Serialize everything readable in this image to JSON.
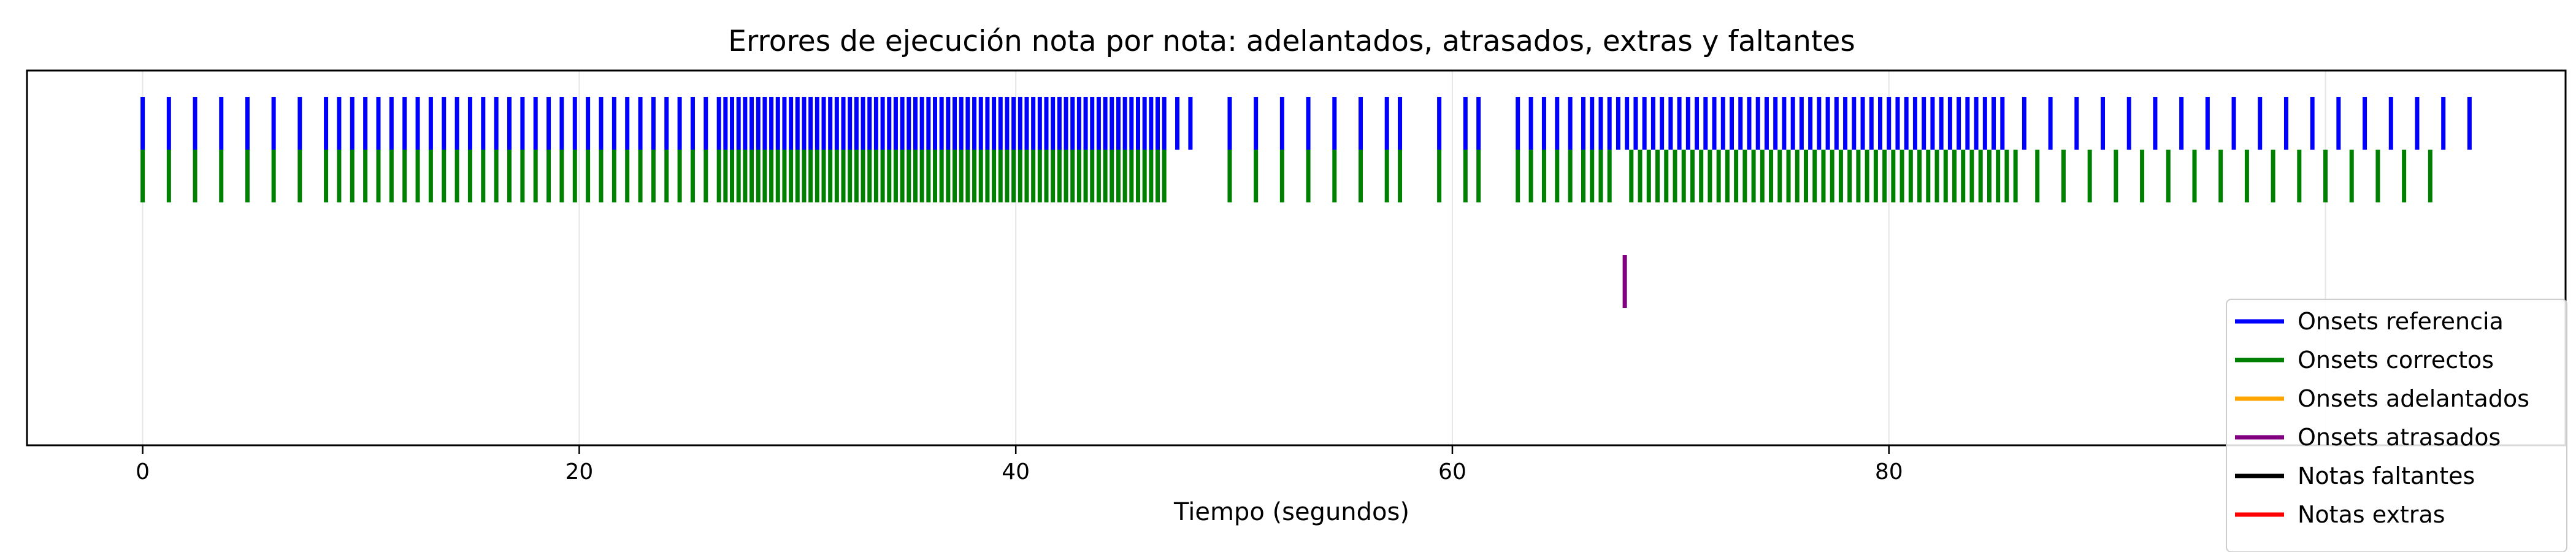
{
  "chart_data": {
    "type": "event-plot",
    "title": "Errores de ejecución nota por nota: adelantados, atrasados, extras y faltantes",
    "xlabel": "Tiempo (segundos)",
    "ylabel": "",
    "xlim": [
      -5.3,
      111
    ],
    "xticks": [
      0,
      20,
      40,
      60,
      80
    ],
    "grid": true,
    "legend_position": "bottom-right",
    "series": [
      {
        "name": "Onsets referencia",
        "color": "#0000ff",
        "row": 1,
        "onsets": [
          0.0,
          1.2,
          2.4,
          3.6,
          4.8,
          6.0,
          7.2,
          8.4,
          9.0,
          9.6,
          10.2,
          10.8,
          11.4,
          12.0,
          12.6,
          13.2,
          13.8,
          14.4,
          15.0,
          15.6,
          16.2,
          16.8,
          17.4,
          18.0,
          18.6,
          19.2,
          19.8,
          20.4,
          21.0,
          21.6,
          22.2,
          22.8,
          23.4,
          24.0,
          24.6,
          25.2,
          25.8,
          26.4,
          26.7,
          27.0,
          27.3,
          27.6,
          27.9,
          28.2,
          28.5,
          28.8,
          29.1,
          29.4,
          29.7,
          30.0,
          30.3,
          30.6,
          30.9,
          31.2,
          31.5,
          31.8,
          32.1,
          32.4,
          32.7,
          33.0,
          33.3,
          33.6,
          33.9,
          34.2,
          34.5,
          34.8,
          35.1,
          35.4,
          35.7,
          36.0,
          36.3,
          36.6,
          36.9,
          37.2,
          37.5,
          37.8,
          38.1,
          38.4,
          38.7,
          39.0,
          39.3,
          39.6,
          39.9,
          40.2,
          40.5,
          40.8,
          41.1,
          41.4,
          41.7,
          42.0,
          42.3,
          42.6,
          42.9,
          43.2,
          43.5,
          43.8,
          44.1,
          44.4,
          44.7,
          45.0,
          45.3,
          45.6,
          45.9,
          46.2,
          46.5,
          46.8,
          47.4,
          48.0,
          49.8,
          51.0,
          52.2,
          53.4,
          54.6,
          55.8,
          57.0,
          57.6,
          59.4,
          60.6,
          61.2,
          63.0,
          63.6,
          64.2,
          64.8,
          65.4,
          66.0,
          66.4,
          66.8,
          67.2,
          67.6,
          68.0,
          68.4,
          68.8,
          69.2,
          69.6,
          70.0,
          70.4,
          70.8,
          71.2,
          71.6,
          72.0,
          72.4,
          72.8,
          73.2,
          73.6,
          74.0,
          74.4,
          74.8,
          75.2,
          75.6,
          76.0,
          76.4,
          76.8,
          77.2,
          77.6,
          78.0,
          78.4,
          78.8,
          79.2,
          79.6,
          80.0,
          80.4,
          80.8,
          81.2,
          81.6,
          82.0,
          82.4,
          82.8,
          83.2,
          83.6,
          84.0,
          84.4,
          84.8,
          85.2,
          86.2,
          87.4,
          88.6,
          89.8,
          91.0,
          92.2,
          93.4,
          94.6,
          95.8,
          97.0,
          98.2,
          99.4,
          100.6,
          101.8,
          103.0,
          104.2,
          105.4,
          106.6
        ]
      },
      {
        "name": "Onsets correctos",
        "color": "#008000",
        "row": 0,
        "onsets": [
          0.0,
          1.2,
          2.4,
          3.6,
          4.8,
          6.0,
          7.2,
          8.4,
          9.0,
          9.6,
          10.2,
          10.8,
          11.4,
          12.0,
          12.6,
          13.2,
          13.8,
          14.4,
          15.0,
          15.6,
          16.2,
          16.8,
          17.4,
          18.0,
          18.6,
          19.2,
          19.8,
          20.4,
          21.0,
          21.6,
          22.2,
          22.8,
          23.4,
          24.0,
          24.6,
          25.2,
          25.8,
          26.4,
          26.7,
          27.0,
          27.3,
          27.6,
          27.9,
          28.2,
          28.5,
          28.8,
          29.1,
          29.4,
          29.7,
          30.0,
          30.3,
          30.6,
          30.9,
          31.2,
          31.5,
          31.8,
          32.1,
          32.4,
          32.7,
          33.0,
          33.3,
          33.6,
          33.9,
          34.2,
          34.5,
          34.8,
          35.1,
          35.4,
          35.7,
          36.0,
          36.3,
          36.6,
          36.9,
          37.2,
          37.5,
          37.8,
          38.1,
          38.4,
          38.7,
          39.0,
          39.3,
          39.6,
          39.9,
          40.2,
          40.5,
          40.8,
          41.1,
          41.4,
          41.7,
          42.0,
          42.3,
          42.6,
          42.9,
          43.2,
          43.5,
          43.8,
          44.1,
          44.4,
          44.7,
          45.0,
          45.3,
          45.6,
          45.9,
          46.2,
          46.5,
          46.8,
          49.8,
          51.0,
          52.2,
          53.4,
          54.6,
          55.8,
          57.0,
          57.6,
          59.4,
          60.6,
          61.2,
          63.0,
          63.6,
          64.2,
          64.8,
          65.4,
          66.0,
          66.4,
          66.8,
          67.2,
          68.2,
          68.6,
          69.0,
          69.4,
          69.8,
          70.2,
          70.6,
          71.0,
          71.4,
          71.8,
          72.2,
          72.6,
          73.0,
          73.4,
          73.8,
          74.2,
          74.6,
          75.0,
          75.4,
          75.8,
          76.2,
          76.6,
          77.0,
          77.4,
          77.8,
          78.2,
          78.6,
          79.0,
          79.4,
          79.8,
          80.2,
          80.6,
          81.0,
          81.4,
          81.8,
          82.2,
          82.6,
          83.0,
          83.4,
          83.8,
          84.2,
          84.6,
          85.0,
          85.4,
          85.8,
          86.8,
          88.0,
          89.2,
          90.4,
          91.6,
          92.8,
          94.0,
          95.2,
          96.4,
          97.6,
          98.8,
          100.0,
          101.2,
          102.4,
          103.6,
          104.8
        ]
      },
      {
        "name": "Onsets adelantados",
        "color": "#ffa500",
        "row": -1,
        "onsets": []
      },
      {
        "name": "Onsets atrasados",
        "color": "#800080",
        "row": -2,
        "onsets": [
          67.9
        ]
      },
      {
        "name": "Notas faltantes",
        "color": "#000000",
        "row": -3,
        "onsets": []
      },
      {
        "name": "Notas extras",
        "color": "#ff0000",
        "row": -4,
        "onsets": []
      }
    ]
  }
}
